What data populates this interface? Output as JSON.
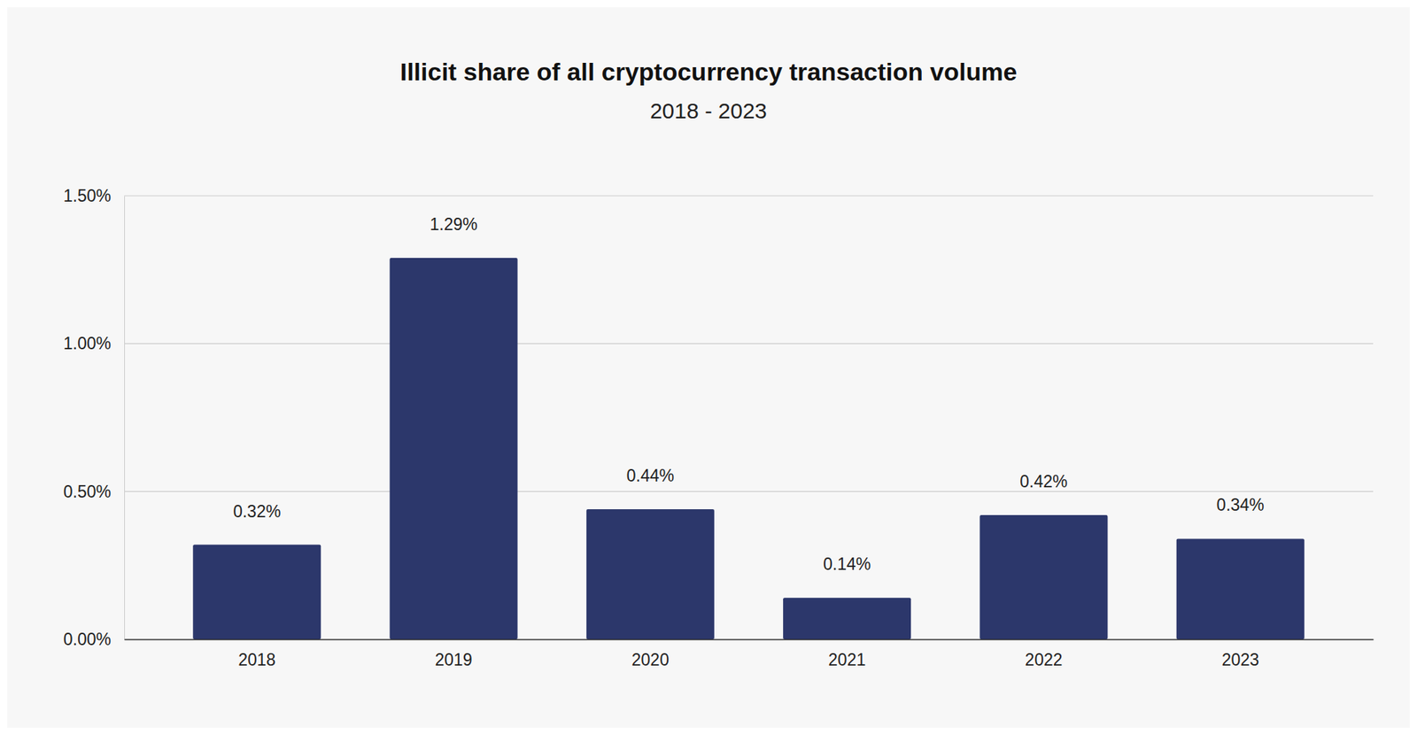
{
  "chart_data": {
    "type": "bar",
    "title": "Illicit share of all cryptocurrency transaction volume",
    "subtitle": "2018 - 2023",
    "categories": [
      "2018",
      "2019",
      "2020",
      "2021",
      "2022",
      "2023"
    ],
    "values": [
      0.32,
      1.29,
      0.44,
      0.14,
      0.42,
      0.34
    ],
    "value_labels": [
      "0.32%",
      "1.29%",
      "0.44%",
      "0.14%",
      "0.42%",
      "0.34%"
    ],
    "color": "#2c376b",
    "ylim": [
      0,
      1.5
    ],
    "yticks": [
      {
        "value": 0,
        "label": "0.00%"
      },
      {
        "value": 0.5,
        "label": "0.50%"
      },
      {
        "value": 1,
        "label": "1.00%"
      },
      {
        "value": 1.5,
        "label": "1.50%"
      }
    ],
    "grid": true,
    "data_labels": true
  }
}
